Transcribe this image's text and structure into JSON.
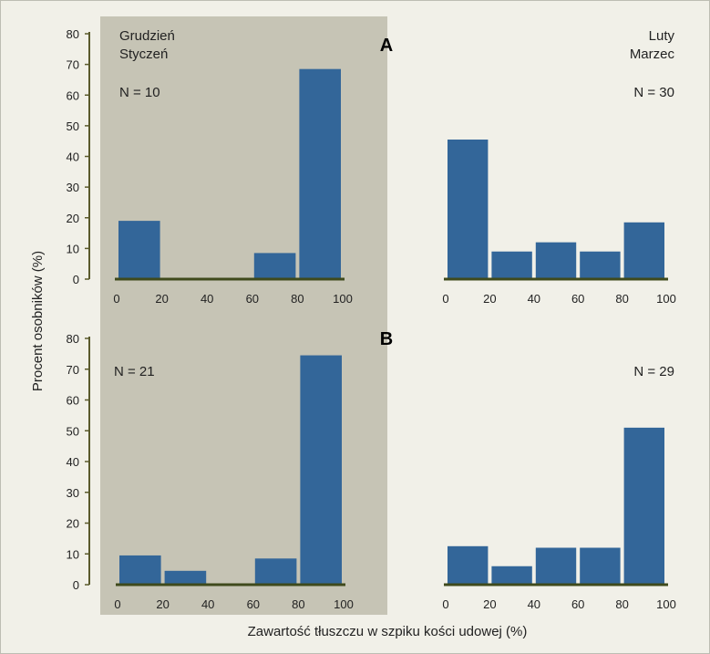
{
  "colors": {
    "background": "#f1f0e8",
    "winter_shade": "#c6c4b5",
    "bar": "#336699",
    "baseline": "#3f4a1c",
    "axis": "#5a5a2c"
  },
  "common": {
    "ylabel": "Procent osobników (%)",
    "xlabel": "Zawartość tłuszczu w szpiku kości udowej (%)"
  },
  "columns": {
    "left": {
      "line1": "Grudzień",
      "line2": "Styczeń"
    },
    "right": {
      "line1": "Luty",
      "line2": "Marzec"
    }
  },
  "row_labels": {
    "a": "A",
    "b": "B"
  },
  "chart_data": [
    {
      "type": "bar",
      "panel": "A",
      "period": "Grudzień–Styczeń",
      "n_label": "N = 10",
      "bins": [
        [
          0,
          20
        ],
        [
          20,
          40
        ],
        [
          40,
          60
        ],
        [
          60,
          80
        ],
        [
          80,
          100
        ]
      ],
      "values": [
        19,
        0,
        0,
        8.5,
        68.5
      ],
      "xticks": [
        "0",
        "20",
        "40",
        "60",
        "80",
        "100"
      ],
      "yticks": [
        "0",
        "10",
        "20",
        "30",
        "40",
        "50",
        "60",
        "70",
        "80"
      ],
      "ylim": [
        0,
        80
      ],
      "xlim": [
        0,
        100
      ]
    },
    {
      "type": "bar",
      "panel": "A",
      "period": "Luty–Marzec",
      "n_label": "N = 30",
      "bins": [
        [
          0,
          20
        ],
        [
          20,
          40
        ],
        [
          40,
          60
        ],
        [
          60,
          80
        ],
        [
          80,
          100
        ]
      ],
      "values": [
        45.5,
        9,
        12,
        9,
        18.5
      ],
      "xticks": [
        "0",
        "20",
        "40",
        "60",
        "80",
        "100"
      ],
      "ylim": [
        0,
        80
      ],
      "xlim": [
        0,
        100
      ]
    },
    {
      "type": "bar",
      "panel": "B",
      "period": "Grudzień–Styczeń",
      "n_label": "N = 21",
      "bins": [
        [
          0,
          20
        ],
        [
          20,
          40
        ],
        [
          40,
          60
        ],
        [
          60,
          80
        ],
        [
          80,
          100
        ]
      ],
      "values": [
        9.5,
        4.5,
        0,
        8.5,
        74.5
      ],
      "xticks": [
        "0",
        "20",
        "40",
        "60",
        "80",
        "100"
      ],
      "yticks": [
        "0",
        "10",
        "20",
        "30",
        "40",
        "50",
        "60",
        "70",
        "80"
      ],
      "ylim": [
        0,
        80
      ],
      "xlim": [
        0,
        100
      ]
    },
    {
      "type": "bar",
      "panel": "B",
      "period": "Luty–Marzec",
      "n_label": "N = 29",
      "bins": [
        [
          0,
          20
        ],
        [
          20,
          40
        ],
        [
          40,
          60
        ],
        [
          60,
          80
        ],
        [
          80,
          100
        ]
      ],
      "values": [
        12.5,
        6,
        12,
        12,
        51
      ],
      "xticks": [
        "0",
        "20",
        "40",
        "60",
        "80",
        "100"
      ],
      "ylim": [
        0,
        80
      ],
      "xlim": [
        0,
        100
      ]
    }
  ]
}
